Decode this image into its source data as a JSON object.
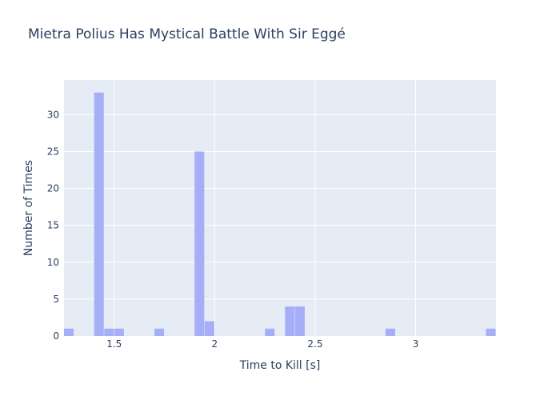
{
  "chart_data": {
    "type": "histogram",
    "title": "Mietra Polius Has Mystical Battle With Sir Eggé",
    "xlabel": "Time to Kill [s]",
    "ylabel": "Number of Times",
    "xlim": [
      1.25,
      3.4
    ],
    "ylim": [
      0,
      34.7
    ],
    "x_ticks": [
      1.5,
      2,
      2.5,
      3
    ],
    "x_tick_labels": [
      "1.5",
      "2",
      "2.5",
      "3"
    ],
    "y_ticks": [
      0,
      5,
      10,
      15,
      20,
      25,
      30
    ],
    "y_tick_labels": [
      "0",
      "5",
      "10",
      "15",
      "20",
      "25",
      "30"
    ],
    "bin_width": 0.05,
    "bins": [
      {
        "x0": 1.25,
        "x1": 1.3,
        "count": 1
      },
      {
        "x0": 1.4,
        "x1": 1.45,
        "count": 33
      },
      {
        "x0": 1.45,
        "x1": 1.5,
        "count": 1
      },
      {
        "x0": 1.5,
        "x1": 1.55,
        "count": 1
      },
      {
        "x0": 1.7,
        "x1": 1.75,
        "count": 1
      },
      {
        "x0": 1.9,
        "x1": 1.95,
        "count": 25
      },
      {
        "x0": 1.95,
        "x1": 2.0,
        "count": 2
      },
      {
        "x0": 2.25,
        "x1": 2.3,
        "count": 1
      },
      {
        "x0": 2.35,
        "x1": 2.4,
        "count": 4
      },
      {
        "x0": 2.4,
        "x1": 2.45,
        "count": 4
      },
      {
        "x0": 2.85,
        "x1": 2.9,
        "count": 1
      },
      {
        "x0": 3.35,
        "x1": 3.4,
        "count": 1
      }
    ],
    "grid": true,
    "legend": false,
    "colors": {
      "bar": "#a6aef8",
      "plot_bg": "#e5ecf6",
      "grid": "#ffffff",
      "text": "#2a3f5f"
    }
  }
}
